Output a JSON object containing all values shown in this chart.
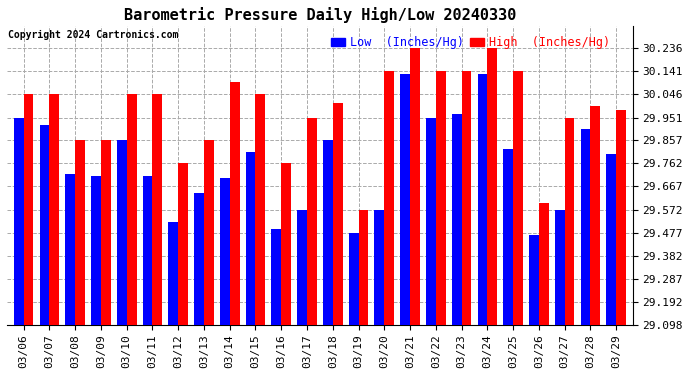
{
  "title": "Barometric Pressure Daily High/Low 20240330",
  "copyright": "Copyright 2024 Cartronics.com",
  "legend_low": "Low  (Inches/Hg)",
  "legend_high": "High  (Inches/Hg)",
  "dates": [
    "03/06",
    "03/07",
    "03/08",
    "03/09",
    "03/10",
    "03/11",
    "03/12",
    "03/13",
    "03/14",
    "03/15",
    "03/16",
    "03/17",
    "03/18",
    "03/19",
    "03/20",
    "03/21",
    "03/22",
    "03/23",
    "03/24",
    "03/25",
    "03/26",
    "03/27",
    "03/28",
    "03/29"
  ],
  "highs": [
    30.046,
    30.046,
    29.857,
    29.857,
    30.046,
    30.046,
    29.762,
    29.857,
    30.098,
    30.046,
    29.762,
    29.951,
    30.01,
    29.572,
    30.141,
    30.236,
    30.141,
    30.141,
    30.236,
    30.141,
    29.6,
    29.951,
    30.0,
    29.98
  ],
  "lows": [
    29.951,
    29.92,
    29.72,
    29.71,
    29.857,
    29.71,
    29.52,
    29.64,
    29.7,
    29.81,
    29.49,
    29.57,
    29.857,
    29.475,
    29.572,
    30.13,
    29.951,
    29.965,
    30.13,
    29.82,
    29.467,
    29.572,
    29.905,
    29.8
  ],
  "ylim_min": 29.098,
  "ylim_max": 30.33,
  "yticks": [
    29.098,
    29.192,
    29.287,
    29.382,
    29.477,
    29.572,
    29.667,
    29.762,
    29.857,
    29.951,
    30.046,
    30.141,
    30.236
  ],
  "bar_color_high": "#ff0000",
  "bar_color_low": "#0000ff",
  "background_color": "#ffffff",
  "grid_color": "#aaaaaa",
  "title_fontsize": 11,
  "tick_fontsize": 8,
  "legend_fontsize": 8.5
}
